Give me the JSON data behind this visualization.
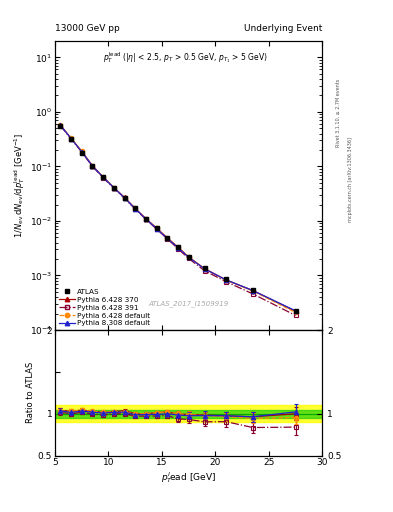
{
  "title_left": "13000 GeV pp",
  "title_right": "Underlying Event",
  "watermark": "ATLAS_2017_I1509919",
  "xlim": [
    5,
    30
  ],
  "ylim_main": [
    0.0001,
    20
  ],
  "ylim_ratio": [
    0.5,
    2.0
  ],
  "atlas_x": [
    5.5,
    6.5,
    7.5,
    8.5,
    9.5,
    10.5,
    11.5,
    12.5,
    13.5,
    14.5,
    15.5,
    16.5,
    17.5,
    19.0,
    21.0,
    23.5,
    27.5
  ],
  "atlas_y": [
    0.55,
    0.32,
    0.18,
    0.1,
    0.063,
    0.04,
    0.026,
    0.017,
    0.011,
    0.0073,
    0.0048,
    0.0033,
    0.0022,
    0.00135,
    0.00085,
    0.00055,
    0.00022
  ],
  "atlas_yerr": [
    0.02,
    0.012,
    0.007,
    0.004,
    0.0025,
    0.0015,
    0.001,
    0.0006,
    0.0004,
    0.0003,
    0.0002,
    0.00013,
    9e-05,
    5e-05,
    3e-05,
    2e-05,
    9e-06
  ],
  "py6_370_x": [
    5.5,
    6.5,
    7.5,
    8.5,
    9.5,
    10.5,
    11.5,
    12.5,
    13.5,
    14.5,
    15.5,
    16.5,
    17.5,
    19.0,
    21.0,
    23.5,
    27.5
  ],
  "py6_370_y": [
    0.57,
    0.33,
    0.188,
    0.103,
    0.064,
    0.041,
    0.027,
    0.017,
    0.011,
    0.0074,
    0.0049,
    0.0033,
    0.00218,
    0.00133,
    0.00083,
    0.00053,
    0.00022
  ],
  "py6_391_x": [
    5.5,
    6.5,
    7.5,
    8.5,
    9.5,
    10.5,
    11.5,
    12.5,
    13.5,
    14.5,
    15.5,
    16.5,
    17.5,
    19.0,
    21.0,
    23.5,
    27.5
  ],
  "py6_391_y": [
    0.56,
    0.32,
    0.183,
    0.1,
    0.062,
    0.04,
    0.026,
    0.0165,
    0.0107,
    0.0071,
    0.0047,
    0.0031,
    0.00205,
    0.00122,
    0.00077,
    0.00046,
    0.000185
  ],
  "py6_def_x": [
    5.5,
    6.5,
    7.5,
    8.5,
    9.5,
    10.5,
    11.5,
    12.5,
    13.5,
    14.5,
    15.5,
    16.5,
    17.5,
    19.0,
    21.0,
    23.5,
    27.5
  ],
  "py6_def_y": [
    0.57,
    0.33,
    0.188,
    0.103,
    0.064,
    0.041,
    0.0265,
    0.017,
    0.011,
    0.0074,
    0.0049,
    0.0033,
    0.00218,
    0.00132,
    0.00082,
    0.00052,
    0.00021
  ],
  "py8_def_x": [
    5.5,
    6.5,
    7.5,
    8.5,
    9.5,
    10.5,
    11.5,
    12.5,
    13.5,
    14.5,
    15.5,
    16.5,
    17.5,
    19.0,
    21.0,
    23.5,
    27.5
  ],
  "py8_def_y": [
    0.57,
    0.325,
    0.186,
    0.102,
    0.0635,
    0.0407,
    0.0265,
    0.0168,
    0.0109,
    0.00725,
    0.0048,
    0.00325,
    0.00215,
    0.00132,
    0.00083,
    0.00053,
    0.000225
  ],
  "ratio_py6_370": [
    1.04,
    1.03,
    1.044,
    1.03,
    1.016,
    1.025,
    1.038,
    1.0,
    1.0,
    1.014,
    1.021,
    1.0,
    0.991,
    0.985,
    0.976,
    0.964,
    1.0
  ],
  "ratio_py6_391": [
    1.018,
    1.0,
    1.017,
    1.0,
    0.984,
    1.0,
    1.0,
    0.971,
    0.973,
    0.973,
    0.979,
    0.939,
    0.932,
    0.904,
    0.906,
    0.836,
    0.841
  ],
  "ratio_py6_def": [
    1.036,
    1.031,
    1.044,
    1.03,
    1.016,
    1.025,
    1.019,
    1.0,
    1.0,
    1.014,
    1.021,
    1.0,
    0.991,
    0.978,
    0.965,
    0.945,
    0.955
  ],
  "ratio_py8_def": [
    1.036,
    1.016,
    1.033,
    1.02,
    1.008,
    1.018,
    1.019,
    0.988,
    0.991,
    0.993,
    1.0,
    0.985,
    0.977,
    0.978,
    0.976,
    0.964,
    1.023
  ],
  "ratio_py6_370_err": [
    0.03,
    0.025,
    0.025,
    0.02,
    0.02,
    0.02,
    0.02,
    0.02,
    0.025,
    0.025,
    0.03,
    0.03,
    0.04,
    0.04,
    0.05,
    0.06,
    0.08
  ],
  "ratio_py6_391_err": [
    0.03,
    0.025,
    0.025,
    0.02,
    0.02,
    0.02,
    0.02,
    0.02,
    0.025,
    0.025,
    0.03,
    0.035,
    0.04,
    0.05,
    0.06,
    0.07,
    0.09
  ],
  "ratio_py6_def_err": [
    0.03,
    0.025,
    0.025,
    0.02,
    0.02,
    0.02,
    0.02,
    0.02,
    0.025,
    0.025,
    0.03,
    0.03,
    0.04,
    0.04,
    0.05,
    0.06,
    0.08
  ],
  "ratio_py8_def_err": [
    0.03,
    0.025,
    0.025,
    0.02,
    0.02,
    0.02,
    0.02,
    0.02,
    0.025,
    0.025,
    0.03,
    0.03,
    0.04,
    0.05,
    0.05,
    0.06,
    0.09
  ],
  "color_atlas": "#000000",
  "color_py6_370": "#aa0000",
  "color_py6_391": "#880033",
  "color_py6_def": "#ff8800",
  "color_py8_def": "#2222cc",
  "color_band_yellow": "#ffff00",
  "color_band_green": "#00cc00",
  "color_refline": "#00aa00"
}
